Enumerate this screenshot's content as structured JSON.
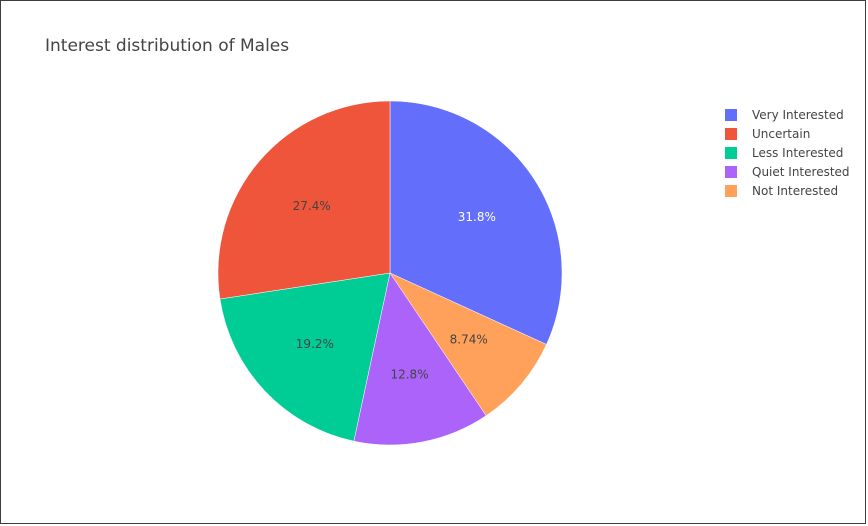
{
  "chart_data": {
    "type": "pie",
    "title": "Interest distribution of Males",
    "slices": [
      {
        "label": "Very Interested",
        "value": 31.8,
        "text": "31.8%",
        "color": "#636efa",
        "text_color": "#ffffff"
      },
      {
        "label": "Not Interested",
        "value": 8.74,
        "text": "8.74%",
        "color": "#ffa15a",
        "text_color": "#444444"
      },
      {
        "label": "Quiet Interested",
        "value": 12.8,
        "text": "12.8%",
        "color": "#ab63fa",
        "text_color": "#444444"
      },
      {
        "label": "Less Interested",
        "value": 19.2,
        "text": "19.2%",
        "color": "#00cc96",
        "text_color": "#444444"
      },
      {
        "label": "Uncertain",
        "value": 27.4,
        "text": "27.4%",
        "color": "#ef553b",
        "text_color": "#444444"
      }
    ],
    "legend": [
      {
        "label": "Very Interested",
        "color": "#636efa"
      },
      {
        "label": "Uncertain",
        "color": "#ef553b"
      },
      {
        "label": "Less Interested",
        "color": "#00cc96"
      },
      {
        "label": "Quiet Interested",
        "color": "#ab63fa"
      },
      {
        "label": "Not Interested",
        "color": "#ffa15a"
      }
    ],
    "direction": "clockwise",
    "legend_position": "top-right"
  }
}
